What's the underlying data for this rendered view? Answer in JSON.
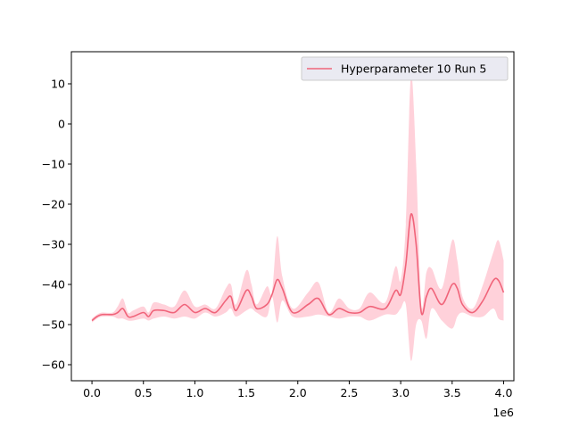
{
  "chart_data": {
    "type": "line",
    "title": "",
    "xlabel": "",
    "ylabel": "",
    "x_offset_label": "1e6",
    "xlim": [
      -0.2,
      4.1
    ],
    "ylim": [
      -64,
      18
    ],
    "x_ticks": [
      0.0,
      0.5,
      1.0,
      1.5,
      2.0,
      2.5,
      3.0,
      3.5,
      4.0
    ],
    "x_tick_labels": [
      "0.0",
      "0.5",
      "1.0",
      "1.5",
      "2.0",
      "2.5",
      "3.0",
      "3.5",
      "4.0"
    ],
    "y_ticks": [
      10,
      0,
      -10,
      -20,
      -30,
      -40,
      -50,
      -60
    ],
    "y_tick_labels": [
      "10",
      "0",
      "−10",
      "−20",
      "−30",
      "−40",
      "−50",
      "−60"
    ],
    "grid": false,
    "legend_position": "top-right",
    "colors": {
      "line": "#f0647a",
      "band": "#ffd1da",
      "legend_bg": "#eaeaf2"
    },
    "series": [
      {
        "name": "Hyperparameter 10 Run 5",
        "x": [
          0.0,
          0.05,
          0.1,
          0.2,
          0.25,
          0.3,
          0.35,
          0.4,
          0.5,
          0.55,
          0.6,
          0.7,
          0.8,
          0.9,
          1.0,
          1.1,
          1.2,
          1.3,
          1.35,
          1.4,
          1.5,
          1.55,
          1.6,
          1.7,
          1.75,
          1.8,
          1.85,
          1.95,
          2.1,
          2.2,
          2.3,
          2.4,
          2.5,
          2.6,
          2.7,
          2.85,
          2.95,
          3.0,
          3.05,
          3.1,
          3.15,
          3.2,
          3.25,
          3.3,
          3.4,
          3.5,
          3.55,
          3.6,
          3.7,
          3.8,
          3.9,
          3.95,
          4.0
        ],
        "y": [
          -49,
          -48,
          -47.5,
          -47.5,
          -47,
          -46,
          -48,
          -48,
          -47,
          -48,
          -46.5,
          -46.5,
          -47,
          -45,
          -47,
          -46,
          -47,
          -44,
          -43,
          -46.5,
          -41.5,
          -43,
          -46,
          -45,
          -42.5,
          -38.8,
          -41,
          -47,
          -45,
          -43.5,
          -47.5,
          -46,
          -47,
          -47,
          -45.5,
          -46,
          -41.5,
          -42.5,
          -35,
          -22.5,
          -30,
          -47,
          -43,
          -41,
          -45,
          -40,
          -41,
          -45,
          -47,
          -44,
          -39,
          -39,
          -42
        ],
        "upper": [
          -48.5,
          -47.5,
          -47,
          -47,
          -45.5,
          -43.5,
          -47,
          -46.5,
          -45.5,
          -47,
          -44.5,
          -45,
          -45.5,
          -41.5,
          -45.5,
          -45,
          -46,
          -41,
          -40,
          -45,
          -36.5,
          -40,
          -45,
          -40.5,
          -42,
          -28,
          -38,
          -46,
          -42,
          -39.5,
          -47,
          -43.5,
          -46,
          -46,
          -42,
          -44.5,
          -35.5,
          -39,
          -25,
          12,
          -10,
          -45,
          -37,
          -36,
          -41,
          -29,
          -34,
          -43,
          -46,
          -40,
          -32,
          -29,
          -34
        ],
        "lower": [
          -49.5,
          -48.5,
          -48,
          -48,
          -48.5,
          -48.5,
          -49,
          -49,
          -48.5,
          -49,
          -48.5,
          -48,
          -48.5,
          -48,
          -48.5,
          -47,
          -48,
          -47,
          -46,
          -48,
          -46.5,
          -46,
          -47,
          -48,
          -43,
          -49.5,
          -44,
          -48,
          -48,
          -47.5,
          -48,
          -48.5,
          -48,
          -48,
          -49,
          -47.5,
          -47.5,
          -46,
          -45,
          -59,
          -50,
          -49,
          -53.5,
          -46,
          -49,
          -51,
          -48,
          -47,
          -48,
          -48,
          -46,
          -48.5,
          -49
        ]
      }
    ]
  }
}
